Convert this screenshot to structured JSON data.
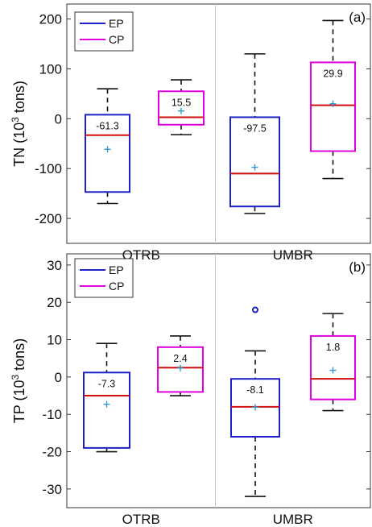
{
  "chart_data": [
    {
      "type": "box",
      "panel_label": "(a)",
      "ylabel": "TN (10^3 tons)",
      "ylabel_parts": {
        "prefix": "TN (10",
        "sup": "3",
        "suffix": " tons)"
      },
      "ylim": [
        -250,
        230
      ],
      "yticks": [
        -200,
        -100,
        0,
        100,
        200
      ],
      "categories": [
        "OTRB",
        "UMBR"
      ],
      "legend": {
        "position": "top-left",
        "entries": [
          {
            "name": "EP",
            "color": "#1f1fc8"
          },
          {
            "name": "CP",
            "color": "#e000e0"
          }
        ]
      },
      "boxes": [
        {
          "category": "OTRB",
          "series": "EP",
          "whisker_low": -170,
          "q1": -147,
          "median": -33,
          "q3": 8,
          "whisker_high": 60,
          "mean": -61.3,
          "mean_label": "-61.3",
          "outliers": []
        },
        {
          "category": "OTRB",
          "series": "CP",
          "whisker_low": -32,
          "q1": -12,
          "median": 3,
          "q3": 55,
          "whisker_high": 78,
          "mean": 15.5,
          "mean_label": "15.5",
          "outliers": []
        },
        {
          "category": "UMBR",
          "series": "EP",
          "whisker_low": -190,
          "q1": -176,
          "median": -110,
          "q3": 3,
          "whisker_high": 130,
          "mean": -97.5,
          "mean_label": "-97.5",
          "outliers": []
        },
        {
          "category": "UMBR",
          "series": "CP",
          "whisker_low": -120,
          "q1": -65,
          "median": 27,
          "q3": 113,
          "whisker_high": 197,
          "mean": 29.9,
          "mean_label": "29.9",
          "outliers": []
        }
      ]
    },
    {
      "type": "box",
      "panel_label": "(b)",
      "ylabel": "TP (10^3 tons)",
      "ylabel_parts": {
        "prefix": "TP (10",
        "sup": "3",
        "suffix": " tons)"
      },
      "ylim": [
        -35,
        33
      ],
      "yticks": [
        -30,
        -20,
        -10,
        0,
        10,
        20,
        30
      ],
      "categories": [
        "OTRB",
        "UMBR"
      ],
      "legend": {
        "position": "top-left",
        "entries": [
          {
            "name": "EP",
            "color": "#1f1fc8"
          },
          {
            "name": "CP",
            "color": "#e000e0"
          }
        ]
      },
      "boxes": [
        {
          "category": "OTRB",
          "series": "EP",
          "whisker_low": -20,
          "q1": -19,
          "median": -5,
          "q3": 1.2,
          "whisker_high": 9,
          "mean": -7.3,
          "mean_label": "-7.3",
          "outliers": []
        },
        {
          "category": "OTRB",
          "series": "CP",
          "whisker_low": -5,
          "q1": -4,
          "median": 2.5,
          "q3": 8,
          "whisker_high": 11,
          "mean": 2.4,
          "mean_label": "2.4",
          "outliers": []
        },
        {
          "category": "UMBR",
          "series": "EP",
          "whisker_low": -32,
          "q1": -16,
          "median": -8,
          "q3": -0.5,
          "whisker_high": 7,
          "mean": -8.1,
          "mean_label": "-8.1",
          "outliers": [
            18
          ]
        },
        {
          "category": "UMBR",
          "series": "CP",
          "whisker_low": -9,
          "q1": -6,
          "median": -0.5,
          "q3": 11,
          "whisker_high": 17,
          "mean": 1.8,
          "mean_label": "1.8",
          "outliers": []
        }
      ]
    }
  ]
}
